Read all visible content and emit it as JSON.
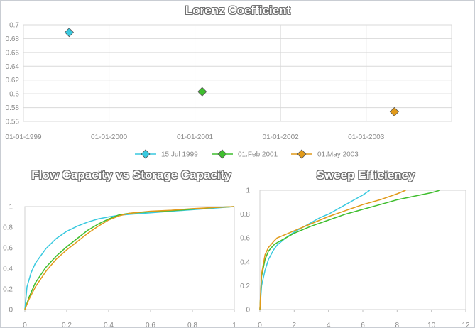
{
  "chart_data": [
    {
      "type": "scatter",
      "title": "Lorenz Coefficient",
      "xlabel": "",
      "ylabel": "",
      "x_ticks": [
        "01-01-1999",
        "01-01-2000",
        "01-01-2001",
        "01-01-2002",
        "01-01-2003"
      ],
      "xlim": [
        "1999-01-01",
        "2003-12-31"
      ],
      "y_ticks": [
        "0.56",
        "0.58",
        "0.6",
        "0.62",
        "0.64",
        "0.66",
        "0.68",
        "0.7"
      ],
      "ylim": [
        0.56,
        0.7
      ],
      "grid": true,
      "legend_position": "bottom",
      "series": [
        {
          "name": "15.Jul 1999",
          "x": [
            "1999-07-15"
          ],
          "y": [
            0.689
          ],
          "color": "#39c9df"
        },
        {
          "name": "01.Feb 2001",
          "x": [
            "2001-02-01"
          ],
          "y": [
            0.603
          ],
          "color": "#3fbe2e"
        },
        {
          "name": "01.May 2003",
          "x": [
            "2003-05-01"
          ],
          "y": [
            0.574
          ],
          "color": "#e19a1a"
        }
      ]
    },
    {
      "type": "line",
      "title": "Flow Capacity vs Storage Capacity",
      "xlabel": "",
      "ylabel": "",
      "x_ticks": [
        "0",
        "0.2",
        "0.4",
        "0.6",
        "0.8",
        "1"
      ],
      "xlim": [
        0,
        1
      ],
      "y_ticks": [
        "0",
        "0.2",
        "0.4",
        "0.6",
        "0.8",
        "1"
      ],
      "ylim": [
        0,
        1
      ],
      "grid": false,
      "series": [
        {
          "color": "#39c9df",
          "x": [
            0,
            0.01,
            0.03,
            0.05,
            0.1,
            0.15,
            0.2,
            0.25,
            0.3,
            0.35,
            0.4,
            0.45,
            0.5,
            0.6,
            0.7,
            0.8,
            0.9,
            1
          ],
          "y": [
            0,
            0.22,
            0.36,
            0.45,
            0.59,
            0.69,
            0.76,
            0.81,
            0.85,
            0.88,
            0.9,
            0.915,
            0.925,
            0.94,
            0.955,
            0.97,
            0.985,
            1
          ]
        },
        {
          "color": "#3fbe2e",
          "x": [
            0,
            0.02,
            0.05,
            0.1,
            0.15,
            0.2,
            0.25,
            0.3,
            0.35,
            0.4,
            0.45,
            0.5,
            0.6,
            0.7,
            0.8,
            0.9,
            1
          ],
          "y": [
            0,
            0.12,
            0.26,
            0.41,
            0.52,
            0.61,
            0.69,
            0.77,
            0.83,
            0.88,
            0.92,
            0.935,
            0.95,
            0.96,
            0.975,
            0.99,
            1
          ]
        },
        {
          "color": "#e19a1a",
          "x": [
            0,
            0.02,
            0.05,
            0.1,
            0.15,
            0.2,
            0.25,
            0.3,
            0.35,
            0.4,
            0.45,
            0.5,
            0.6,
            0.7,
            0.8,
            0.9,
            1
          ],
          "y": [
            0,
            0.1,
            0.22,
            0.37,
            0.49,
            0.58,
            0.66,
            0.74,
            0.81,
            0.87,
            0.91,
            0.935,
            0.955,
            0.965,
            0.98,
            0.99,
            1
          ]
        }
      ]
    },
    {
      "type": "line",
      "title": "Sweep Efficiency",
      "xlabel": "",
      "ylabel": "",
      "x_ticks": [
        "0",
        "2",
        "4",
        "6",
        "8",
        "10",
        "12"
      ],
      "xlim": [
        0,
        12
      ],
      "y_ticks": [
        "0",
        "0.2",
        "0.4",
        "0.6",
        "0.8",
        "1"
      ],
      "ylim": [
        0,
        1
      ],
      "grid": false,
      "series": [
        {
          "color": "#39c9df",
          "x": [
            0,
            0.1,
            0.3,
            0.5,
            0.8,
            1,
            1.5,
            2,
            2.5,
            3,
            3.5,
            4,
            4.5,
            5,
            5.5,
            6,
            6.4
          ],
          "y": [
            0,
            0.2,
            0.33,
            0.42,
            0.5,
            0.54,
            0.6,
            0.65,
            0.69,
            0.73,
            0.77,
            0.8,
            0.84,
            0.88,
            0.92,
            0.96,
            1
          ]
        },
        {
          "color": "#3fbe2e",
          "x": [
            0,
            0.1,
            0.3,
            0.5,
            0.8,
            1,
            1.5,
            2,
            3,
            4,
            5,
            6,
            7,
            8,
            9,
            10,
            10.5
          ],
          "y": [
            0,
            0.28,
            0.42,
            0.49,
            0.54,
            0.56,
            0.6,
            0.64,
            0.7,
            0.75,
            0.8,
            0.84,
            0.88,
            0.92,
            0.95,
            0.98,
            1
          ]
        },
        {
          "color": "#e19a1a",
          "x": [
            0,
            0.1,
            0.3,
            0.5,
            0.8,
            1,
            1.5,
            2,
            3,
            4,
            5,
            6,
            7,
            8,
            8.5
          ],
          "y": [
            0,
            0.3,
            0.46,
            0.52,
            0.57,
            0.6,
            0.63,
            0.66,
            0.72,
            0.78,
            0.83,
            0.88,
            0.92,
            0.97,
            1
          ]
        }
      ]
    }
  ]
}
